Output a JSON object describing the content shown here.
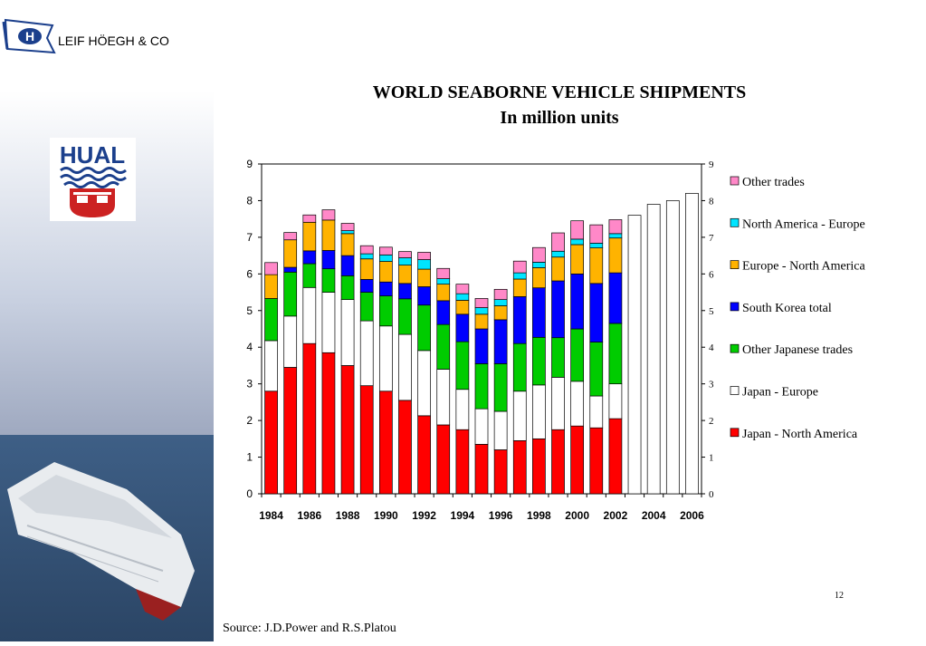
{
  "header": {
    "company": "LEIF HÖEGH & CO",
    "logo_letter": "H"
  },
  "emblem": {
    "text": "HUAL"
  },
  "chart_title": {
    "line1": "WORLD SEABORNE VEHICLE SHIPMENTS",
    "line2": "In million units"
  },
  "page_number": "12",
  "source_note": "Source: J.D.Power and R.S.Platou",
  "colors": {
    "japan_north_america": "#ff0000",
    "japan_europe": "#ffffff",
    "other_japanese_trades": "#00cc00",
    "south_korea_total": "#0000ff",
    "europe_north_america": "#ffb300",
    "north_america_europe": "#00e5ff",
    "other_trades": "#ff88c8",
    "forecast": "#ffffff"
  },
  "chart_data": {
    "type": "bar",
    "stacked": true,
    "title": "WORLD SEABORNE VEHICLE SHIPMENTS",
    "subtitle": "In million units",
    "x": [
      1984,
      1985,
      1986,
      1987,
      1988,
      1989,
      1990,
      1991,
      1992,
      1993,
      1994,
      1995,
      1996,
      1997,
      1998,
      1999,
      2000,
      2001,
      2002,
      2003,
      2004,
      2005,
      2006
    ],
    "x_tick_labels": [
      "1984",
      "1986",
      "1988",
      "1990",
      "1992",
      "1994",
      "1996",
      "1998",
      "2000",
      "2002",
      "2004",
      "2006"
    ],
    "y_ticks": [
      "0",
      "1",
      "2",
      "3",
      "4",
      "5",
      "6",
      "7",
      "8",
      "9"
    ],
    "ylim": [
      0,
      9
    ],
    "secondary_y_axis": true,
    "legend_position": "right",
    "series": [
      {
        "name": "Japan - North America",
        "color_key": "japan_north_america",
        "values": [
          2.8,
          3.45,
          4.1,
          3.85,
          3.5,
          2.95,
          2.8,
          2.55,
          2.13,
          1.88,
          1.75,
          1.35,
          1.2,
          1.45,
          1.5,
          1.75,
          1.85,
          1.8,
          2.05,
          null,
          null,
          null,
          null
        ]
      },
      {
        "name": "Japan - Europe",
        "color_key": "japan_europe",
        "values": [
          1.38,
          1.4,
          1.53,
          1.65,
          1.8,
          1.77,
          1.78,
          1.8,
          1.78,
          1.52,
          1.1,
          0.97,
          1.05,
          1.35,
          1.47,
          1.43,
          1.22,
          0.87,
          0.95,
          null,
          null,
          null,
          null
        ]
      },
      {
        "name": "Other Japanese trades",
        "color_key": "other_japanese_trades",
        "values": [
          1.15,
          1.2,
          0.65,
          0.64,
          0.65,
          0.78,
          0.82,
          0.97,
          1.24,
          1.22,
          1.3,
          1.23,
          1.3,
          1.3,
          1.3,
          1.08,
          1.43,
          1.47,
          1.65,
          null,
          null,
          null,
          null
        ]
      },
      {
        "name": "South Korea total",
        "color_key": "south_korea_total",
        "values": [
          0,
          0.13,
          0.35,
          0.5,
          0.55,
          0.35,
          0.38,
          0.42,
          0.5,
          0.65,
          0.75,
          0.95,
          1.2,
          1.28,
          1.35,
          1.55,
          1.5,
          1.6,
          1.38,
          null,
          null,
          null,
          null
        ]
      },
      {
        "name": "Europe - North America",
        "color_key": "europe_north_america",
        "values": [
          0.65,
          0.75,
          0.78,
          0.83,
          0.6,
          0.56,
          0.56,
          0.5,
          0.48,
          0.45,
          0.38,
          0.4,
          0.38,
          0.48,
          0.55,
          0.65,
          0.8,
          0.97,
          0.95,
          null,
          null,
          null,
          null
        ]
      },
      {
        "name": "North America - Europe",
        "color_key": "north_america_europe",
        "values": [
          0,
          0,
          0,
          0,
          0.08,
          0.14,
          0.18,
          0.2,
          0.26,
          0.15,
          0.18,
          0.18,
          0.17,
          0.17,
          0.15,
          0.16,
          0.15,
          0.13,
          0.12,
          null,
          null,
          null,
          null
        ]
      },
      {
        "name": "Other trades",
        "color_key": "other_trades",
        "values": [
          0.33,
          0.2,
          0.2,
          0.28,
          0.2,
          0.22,
          0.21,
          0.17,
          0.2,
          0.28,
          0.26,
          0.25,
          0.28,
          0.32,
          0.4,
          0.5,
          0.5,
          0.5,
          0.38,
          null,
          null,
          null,
          null
        ]
      },
      {
        "name": "",
        "color_key": "forecast",
        "values": [
          null,
          null,
          null,
          null,
          null,
          null,
          null,
          null,
          null,
          null,
          null,
          null,
          null,
          null,
          null,
          null,
          null,
          null,
          null,
          7.6,
          7.9,
          8.0,
          8.2
        ]
      }
    ],
    "legend_order": [
      "Other trades",
      "North America - Europe",
      "Europe - North America",
      "South Korea total",
      "Other Japanese trades",
      "Japan - Europe",
      "Japan - North America"
    ]
  }
}
